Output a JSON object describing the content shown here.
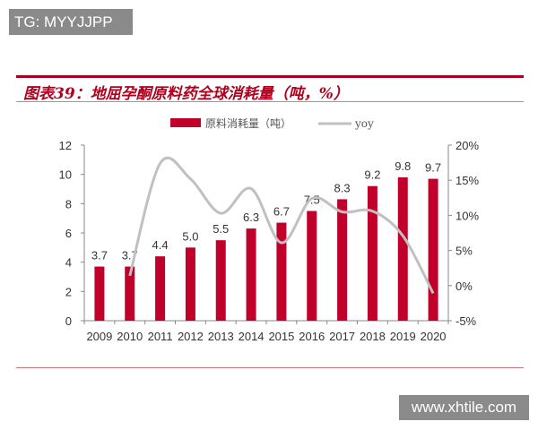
{
  "watermark_top": "TG: MYYJJPP",
  "watermark_bottom": "www.xhtile.com",
  "title": "图表39：地屈孕酮原料药全球消耗量（吨，%）",
  "chart_data": {
    "type": "bar+line",
    "categories": [
      "2009",
      "2010",
      "2011",
      "2012",
      "2013",
      "2014",
      "2015",
      "2016",
      "2017",
      "2018",
      "2019",
      "2020"
    ],
    "series": [
      {
        "name": "原料消耗量（吨）",
        "type": "bar",
        "axis": "left",
        "color": "#c0002a",
        "values": [
          3.7,
          3.7,
          4.4,
          5.0,
          5.5,
          6.3,
          6.7,
          7.5,
          8.3,
          9.2,
          9.8,
          9.7
        ],
        "labels": [
          "3.7",
          "3.7",
          "4.4",
          "5.0",
          "5.5",
          "6.3",
          "6.7",
          "7.5",
          "8.3",
          "9.2",
          "9.8",
          "9.7"
        ]
      },
      {
        "name": "yoy",
        "type": "line",
        "axis": "right",
        "color": "#c0c0c0",
        "values": [
          null,
          1.4,
          17.4,
          15.2,
          10.3,
          13.8,
          6.1,
          12.4,
          10.5,
          10.6,
          7.1,
          -1.1
        ]
      }
    ],
    "y_left": {
      "min": 0,
      "max": 12,
      "ticks": [
        "0",
        "2",
        "4",
        "6",
        "8",
        "10",
        "12"
      ]
    },
    "y_right": {
      "min": -5,
      "max": 20,
      "ticks": [
        "-5%",
        "0%",
        "5%",
        "10%",
        "15%",
        "20%"
      ]
    },
    "legend": "top",
    "grid": false
  }
}
